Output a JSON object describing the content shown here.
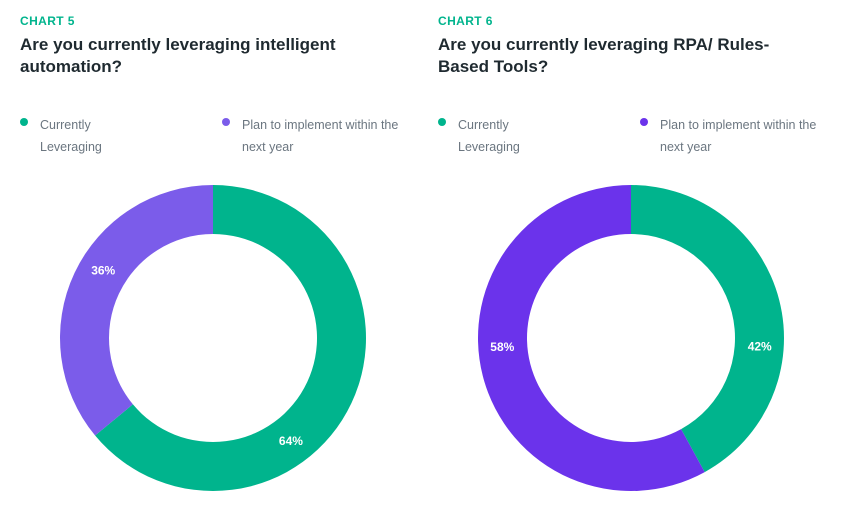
{
  "chart_data": [
    {
      "type": "pie",
      "number_label": "CHART 5",
      "title": "Are you currently leveraging intelligent automation?",
      "categories": [
        "Currently Leveraging",
        "Plan to implement within the next year"
      ],
      "values": [
        64,
        36
      ],
      "value_labels": [
        "64%",
        "36%"
      ],
      "colors": [
        "#00b48d",
        "#7b5cea"
      ],
      "legend": "top"
    },
    {
      "type": "pie",
      "number_label": "CHART 6",
      "title": "Are you currently leveraging RPA/ Rules-Based Tools?",
      "categories": [
        "Currently Leveraging",
        "Plan to implement within the next year"
      ],
      "values": [
        42,
        58
      ],
      "value_labels": [
        "42%",
        "58%"
      ],
      "colors": [
        "#00b48d",
        "#6b33eb"
      ],
      "legend": "top"
    }
  ],
  "theme": {
    "accent": "#00b48d"
  }
}
